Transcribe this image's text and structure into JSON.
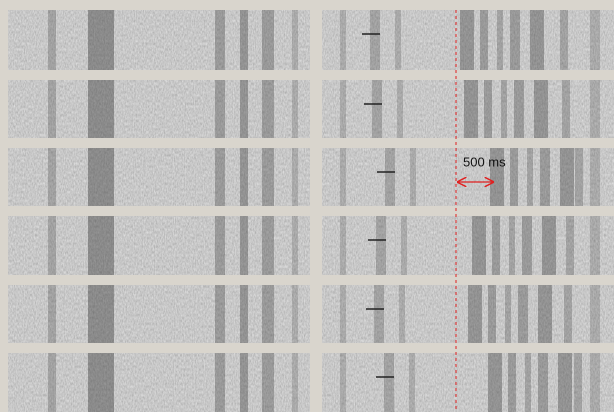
{
  "annotation": {
    "label": "500 ms"
  }
}
